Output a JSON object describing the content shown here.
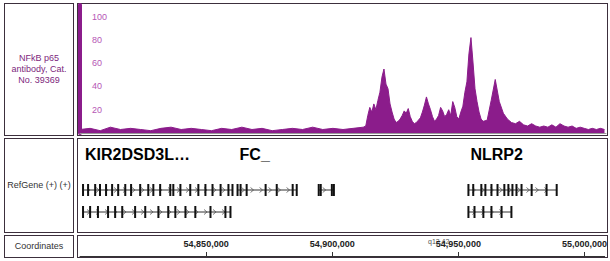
{
  "chart_data": {
    "type": "area",
    "y_label": "NFkB p65 antibody, Cat. No. 39369",
    "x_label": "Coordinates",
    "color": "#8b1c8b",
    "grid": false,
    "xlim": [
      54800000,
      55008000
    ],
    "ylim": [
      0,
      110
    ],
    "yticks": [
      20,
      40,
      60,
      80,
      100
    ],
    "xticks": [
      {
        "value": 54850000,
        "label": "54,850,000"
      },
      {
        "value": 54900000,
        "label": "54,900,000"
      },
      {
        "value": 54950000,
        "label": "54,950,000"
      },
      {
        "value": 55000000,
        "label": "55,000,000"
      }
    ],
    "band_label": "q13.42",
    "x": [
      54800000,
      54804000,
      54808000,
      54812000,
      54816000,
      54820000,
      54824000,
      54828000,
      54832000,
      54836000,
      54840000,
      54844000,
      54848000,
      54852000,
      54856000,
      54860000,
      54864000,
      54868000,
      54872000,
      54876000,
      54880000,
      54884000,
      54888000,
      54892000,
      54896000,
      54900000,
      54904000,
      54908000,
      54912000,
      54913000,
      54913800,
      54914600,
      54915400,
      54916200,
      54917000,
      54917800,
      54918600,
      54919400,
      54920200,
      54921000,
      54921800,
      54922600,
      54923400,
      54924200,
      54925000,
      54925800,
      54926600,
      54927400,
      54928200,
      54929000,
      54929800,
      54930600,
      54931400,
      54932200,
      54933000,
      54933800,
      54934600,
      54935400,
      54936200,
      54937000,
      54937800,
      54938600,
      54939400,
      54940200,
      54941000,
      54941800,
      54942600,
      54943400,
      54944200,
      54945000,
      54945800,
      54946600,
      54947400,
      54948200,
      54949000,
      54949800,
      54950600,
      54951400,
      54952200,
      54953000,
      54953800,
      54954600,
      54955400,
      54956200,
      54957000,
      54957800,
      54958600,
      54959400,
      54961000,
      54962600,
      54964200,
      54965800,
      54967400,
      54969000,
      54970600,
      54972200,
      54973800,
      54975400,
      54977000,
      54978600,
      54980200,
      54981800,
      54983400,
      54985000,
      54986600,
      54988200,
      54989800,
      54991400,
      54993000,
      54994600,
      54996200,
      54997800,
      54999400,
      55001000,
      55002600,
      55004200,
      55005800,
      55007400
    ],
    "values": [
      3,
      4,
      2,
      5,
      3,
      4,
      3,
      2,
      4,
      5,
      3,
      4,
      3,
      2,
      4,
      3,
      5,
      3,
      4,
      2,
      3,
      4,
      3,
      5,
      3,
      4,
      3,
      4,
      5,
      6,
      15,
      22,
      18,
      25,
      20,
      28,
      35,
      48,
      55,
      42,
      38,
      25,
      18,
      12,
      9,
      10,
      12,
      15,
      19,
      17,
      21,
      14,
      10,
      8,
      9,
      11,
      13,
      18,
      24,
      31,
      25,
      20,
      14,
      10,
      12,
      15,
      22,
      19,
      14,
      16,
      20,
      15,
      27,
      22,
      14,
      12,
      18,
      23,
      35,
      44,
      68,
      82,
      61,
      38,
      27,
      18,
      12,
      10,
      11,
      28,
      46,
      27,
      17,
      12,
      9,
      8,
      10,
      7,
      6,
      8,
      6,
      5,
      6,
      5,
      7,
      5,
      8,
      6,
      5,
      6,
      4,
      5,
      4,
      3,
      4,
      3,
      4,
      3
    ],
    "gene_track": {
      "label": "RefGene (+) (+)",
      "genes": [
        {
          "name": "KIR2DSD3L…",
          "strand": "+",
          "transcripts": [
            {
              "start": 54801200,
              "end": 54860300,
              "exons": [
                54801200,
                54803200,
                54806000,
                54807900,
                54810300,
                54812700,
                54815100,
                54817900,
                54820200,
                54823800,
                54827000,
                54829000,
                54831700,
                54835700,
                54836900,
                54839700,
                54843600,
                54846800,
                54849600,
                54852400,
                54855600,
                54858700,
                54860300
              ]
            },
            {
              "start": 54801200,
              "end": 54859500,
              "exons": [
                54801200,
                54804000,
                54807100,
                54811100,
                54813900,
                54816700,
                54821800,
                54825800,
                54831000,
                54834900,
                54837700,
                54841700,
                54845600,
                54851600,
                54857500,
                54859500
              ]
            }
          ]
        },
        {
          "name": "FC_",
          "strand": "+",
          "transcripts": [
            {
              "start": 54862300,
              "end": 54885700,
              "exons": [
                54862300,
                54863500,
                54865900,
                54873400,
                54877800,
                54884100,
                54885700
              ]
            }
          ]
        },
        {
          "strand": "+",
          "transcripts": [
            {
              "start": 54894400,
              "end": 54900400,
              "exons": [
                54894400,
                54895200,
                54899600,
                54900400
              ]
            }
          ]
        },
        {
          "name": "NLRP2",
          "strand": "+",
          "transcripts": [
            {
              "start": 54953600,
              "end": 54988500,
              "exons": [
                54953600,
                54955500,
                54958700,
                54960300,
                54962700,
                54965100,
                54967800,
                54969400,
                54971000,
                54972600,
                54974600,
                54978600,
                54984500,
                54988500
              ]
            },
            {
              "start": 54953600,
              "end": 54970600,
              "exons": [
                54953600,
                54956000,
                54959500,
                54962700,
                54966700,
                54970600
              ]
            }
          ]
        }
      ]
    }
  }
}
